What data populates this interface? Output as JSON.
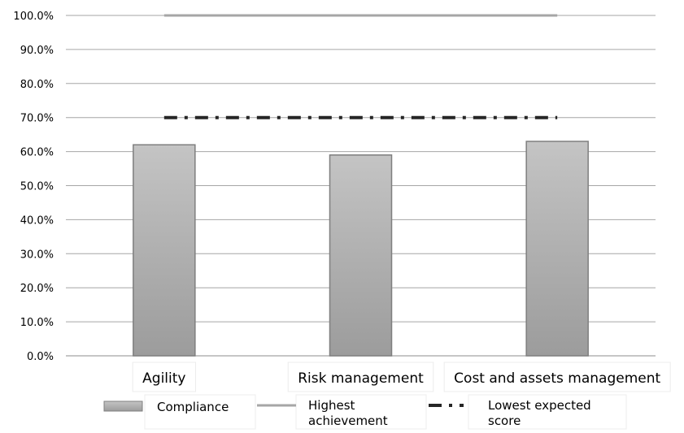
{
  "chart_data": {
    "type": "bar",
    "categories": [
      "Agility",
      "Risk management",
      "Cost and assets management"
    ],
    "series": [
      {
        "name": "Compliance",
        "type": "bar",
        "values": [
          62.0,
          59.0,
          63.0
        ]
      },
      {
        "name": "Highest achievement",
        "type": "line",
        "values": [
          100.0,
          100.0,
          100.0
        ]
      },
      {
        "name": "Lowest expected score",
        "type": "line",
        "values": [
          70.0,
          70.0,
          70.0
        ]
      }
    ],
    "yticks": [
      "0.0%",
      "10.0%",
      "20.0%",
      "30.0%",
      "40.0%",
      "50.0%",
      "60.0%",
      "70.0%",
      "80.0%",
      "90.0%",
      "100.0%"
    ],
    "ylim": [
      0,
      100
    ],
    "grid": true,
    "legend_position": "bottom",
    "legend": [
      {
        "lines": [
          "Compliance"
        ],
        "style": "bar"
      },
      {
        "lines": [
          "Highest",
          "achievement"
        ],
        "style": "solid-line"
      },
      {
        "lines": [
          "Lowest expected",
          "score"
        ],
        "style": "dash-dot-line"
      }
    ],
    "colors": {
      "bar": "#b3b3b3",
      "bar_edge": "#7f7f7f",
      "highest": "#a6a6a6",
      "lowest": "#262626",
      "grid": "#a6a6a6"
    }
  }
}
